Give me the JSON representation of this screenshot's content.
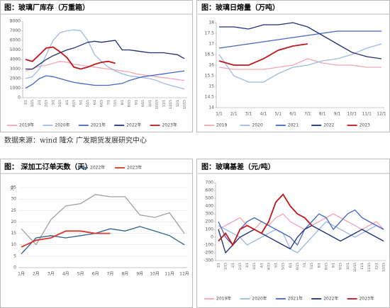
{
  "source": "数据来源：wind 隆众 广发期货发展研究中心",
  "chart_data": [
    {
      "type": "line",
      "title": "图：玻璃厂库存（万重箱）",
      "legend": "bottom",
      "grid": false,
      "xrotate": true,
      "categories": [
        "1/1",
        "1/15",
        "2/1",
        "2/15",
        "3/1",
        "3/15",
        "4/1",
        "4/15",
        "5/1",
        "5/15",
        "6/1",
        "6/15",
        "7/1",
        "7/15",
        "8/1",
        "8/15",
        "9/1",
        "9/15",
        "10/1",
        "10/15",
        "11/1",
        "11/15",
        "12/1",
        "12/15"
      ],
      "ylim": [
        0,
        8000
      ],
      "yticks": [
        0,
        1000,
        2000,
        3000,
        4000,
        5000,
        6000,
        7000,
        8000
      ],
      "series": [
        {
          "name": "2019年",
          "color": "#f4a6b4",
          "values": [
            2800,
            3000,
            3300,
            3400,
            3600,
            3800,
            3700,
            3500,
            3400,
            3300,
            3200,
            3100,
            3000,
            2900,
            2800,
            2700,
            2500,
            2400,
            2300,
            2200,
            2100,
            2000,
            1900,
            1800
          ]
        },
        {
          "name": "2020年",
          "color": "#9eb9e3",
          "values": [
            2000,
            2200,
            3000,
            4500,
            6000,
            6800,
            7000,
            7100,
            7000,
            6000,
            4500,
            3800,
            3200,
            2800,
            2500,
            2300,
            2200,
            2100,
            2000,
            1800,
            1500,
            1300,
            1100,
            900
          ]
        },
        {
          "name": "2021年",
          "color": "#4466c4",
          "values": [
            1000,
            1400,
            2000,
            2300,
            2200,
            2000,
            1800,
            1600,
            1500,
            1400,
            1300,
            1300,
            1300,
            1400,
            1500,
            1800,
            2000,
            2200,
            2300,
            2400,
            2500,
            2600,
            2700,
            2800
          ]
        },
        {
          "name": "2022年",
          "color": "#1f2f7a",
          "values": [
            3000,
            3000,
            3500,
            4000,
            4400,
            4700,
            5000,
            5200,
            5500,
            5800,
            5900,
            5800,
            5900,
            6000,
            5000,
            5000,
            4900,
            4800,
            4700,
            4700,
            4700,
            4600,
            4500,
            4100
          ]
        },
        {
          "name": "2023年",
          "color": "#c0161d",
          "values": [
            4000,
            3800,
            4500,
            5200,
            5300,
            4800,
            4200,
            3200,
            3000,
            3200,
            3500,
            3700,
            3800,
            3600,
            null,
            null,
            null,
            null,
            null,
            null,
            null,
            null,
            null,
            null
          ]
        }
      ]
    },
    {
      "type": "line",
      "title": "图：玻璃日熔量（万吨）",
      "legend": "bottom",
      "grid": false,
      "xrotate": false,
      "categories": [
        "1/1",
        "2/1",
        "3/1",
        "4/1",
        "5/1",
        "6/1",
        "7/1",
        "8/1",
        "9/1",
        "10/1",
        "11/1",
        "12/1"
      ],
      "ylim": [
        14,
        18
      ],
      "yticks": [
        14,
        14.5,
        15,
        15.5,
        16,
        16.5,
        17,
        17.5,
        18
      ],
      "series": [
        {
          "name": "2019",
          "color": "#f4a6b4",
          "values": [
            15.9,
            15.8,
            15.8,
            15.8,
            15.9,
            16.0,
            16.3,
            16.1,
            16.0,
            16.0,
            15.9,
            15.9
          ]
        },
        {
          "name": "2020",
          "color": "#9eb9e3",
          "values": [
            16.5,
            15.5,
            15.2,
            15.2,
            15.6,
            15.9,
            16.0,
            16.2,
            16.3,
            16.5,
            16.8,
            17.0
          ]
        },
        {
          "name": "2021",
          "color": "#4466c4",
          "values": [
            16.8,
            16.9,
            17.0,
            17.1,
            17.2,
            17.3,
            17.4,
            17.5,
            17.6,
            17.6,
            17.6,
            17.6
          ]
        },
        {
          "name": "2022",
          "color": "#1f2f7a",
          "values": [
            17.8,
            17.8,
            17.7,
            17.9,
            17.9,
            18.0,
            17.8,
            17.4,
            17.0,
            16.6,
            16.4,
            16.3
          ]
        },
        {
          "name": "2023",
          "color": "#c0161d",
          "values": [
            16.2,
            16.0,
            16.0,
            16.3,
            16.7,
            16.9,
            17.0,
            null,
            null,
            null,
            null,
            null
          ]
        }
      ]
    },
    {
      "type": "line",
      "title": "图： 深加工订单天数（天）",
      "ylabel": "天",
      "legend": "top",
      "grid": true,
      "xrotate": false,
      "categories": [
        "1月",
        "2月",
        "3月",
        "4月",
        "5月",
        "6月",
        "7月",
        "8月",
        "9月",
        "10月",
        "11月",
        "12月"
      ],
      "ylim": [
        0,
        35
      ],
      "yticks": [
        0,
        5,
        10,
        15,
        20,
        25,
        30,
        35
      ],
      "series": [
        {
          "name": "2021年",
          "color": "#a0a0a0",
          "values": [
            17,
            10,
            21,
            27,
            28,
            32,
            31,
            31,
            23,
            22,
            24,
            15
          ]
        },
        {
          "name": "2022年",
          "color": "#2e5f8a",
          "values": [
            6,
            13,
            14,
            13,
            14,
            15,
            17,
            16,
            18,
            16,
            14,
            10
          ]
        },
        {
          "name": "2023年",
          "color": "#d9382a",
          "values": [
            9,
            12,
            13,
            16,
            16,
            15,
            15,
            null,
            null,
            null,
            null,
            null
          ]
        }
      ]
    },
    {
      "type": "line",
      "title": "图：玻璃基差（元/吨）",
      "legend": "bottom",
      "grid": false,
      "xrotate": true,
      "categories": [
        "1/1",
        "1/15",
        "2/1",
        "2/15",
        "3/1",
        "3/15",
        "4/1",
        "4/15",
        "5/1",
        "5/15",
        "6/1",
        "6/15",
        "7/1",
        "7/15",
        "8/1",
        "8/15",
        "9/1",
        "9/15",
        "10/1",
        "10/15",
        "11/1",
        "11/15",
        "12/1",
        "12/15"
      ],
      "ylim": [
        -300,
        700
      ],
      "yticks": [
        -300,
        -200,
        -100,
        0,
        100,
        200,
        300,
        400,
        500,
        600,
        700
      ],
      "series": [
        {
          "name": "2019年",
          "color": "#f4a6b4",
          "values": [
            100,
            150,
            200,
            250,
            150,
            100,
            200,
            150,
            250,
            300,
            200,
            150,
            100,
            150,
            200,
            250,
            300,
            250,
            200,
            150,
            100,
            150,
            200,
            100
          ]
        },
        {
          "name": "2020年",
          "color": "#9eb9e3",
          "values": [
            150,
            100,
            50,
            0,
            -100,
            -50,
            0,
            50,
            100,
            50,
            -150,
            -200,
            -100,
            0,
            100,
            200,
            150,
            100,
            50,
            0,
            50,
            100,
            150,
            100
          ]
        },
        {
          "name": "2021年",
          "color": "#4466c4",
          "values": [
            200,
            0,
            -100,
            100,
            200,
            250,
            200,
            150,
            100,
            50,
            0,
            -100,
            100,
            200,
            300,
            250,
            100,
            200,
            300,
            350,
            250,
            200,
            150,
            100
          ]
        },
        {
          "name": "2022年",
          "color": "#1f2f7a",
          "values": [
            100,
            -200,
            -100,
            0,
            50,
            100,
            50,
            0,
            -50,
            -100,
            -150,
            0,
            100,
            150,
            100,
            50,
            0,
            -50,
            0,
            50,
            100,
            50,
            0,
            -50
          ]
        },
        {
          "name": "2023年",
          "color": "#c0161d",
          "values": [
            -50,
            50,
            -100,
            100,
            150,
            100,
            50,
            200,
            450,
            550,
            400,
            300,
            250,
            150,
            null,
            null,
            null,
            null,
            null,
            null,
            null,
            null,
            null,
            null
          ]
        }
      ]
    }
  ]
}
